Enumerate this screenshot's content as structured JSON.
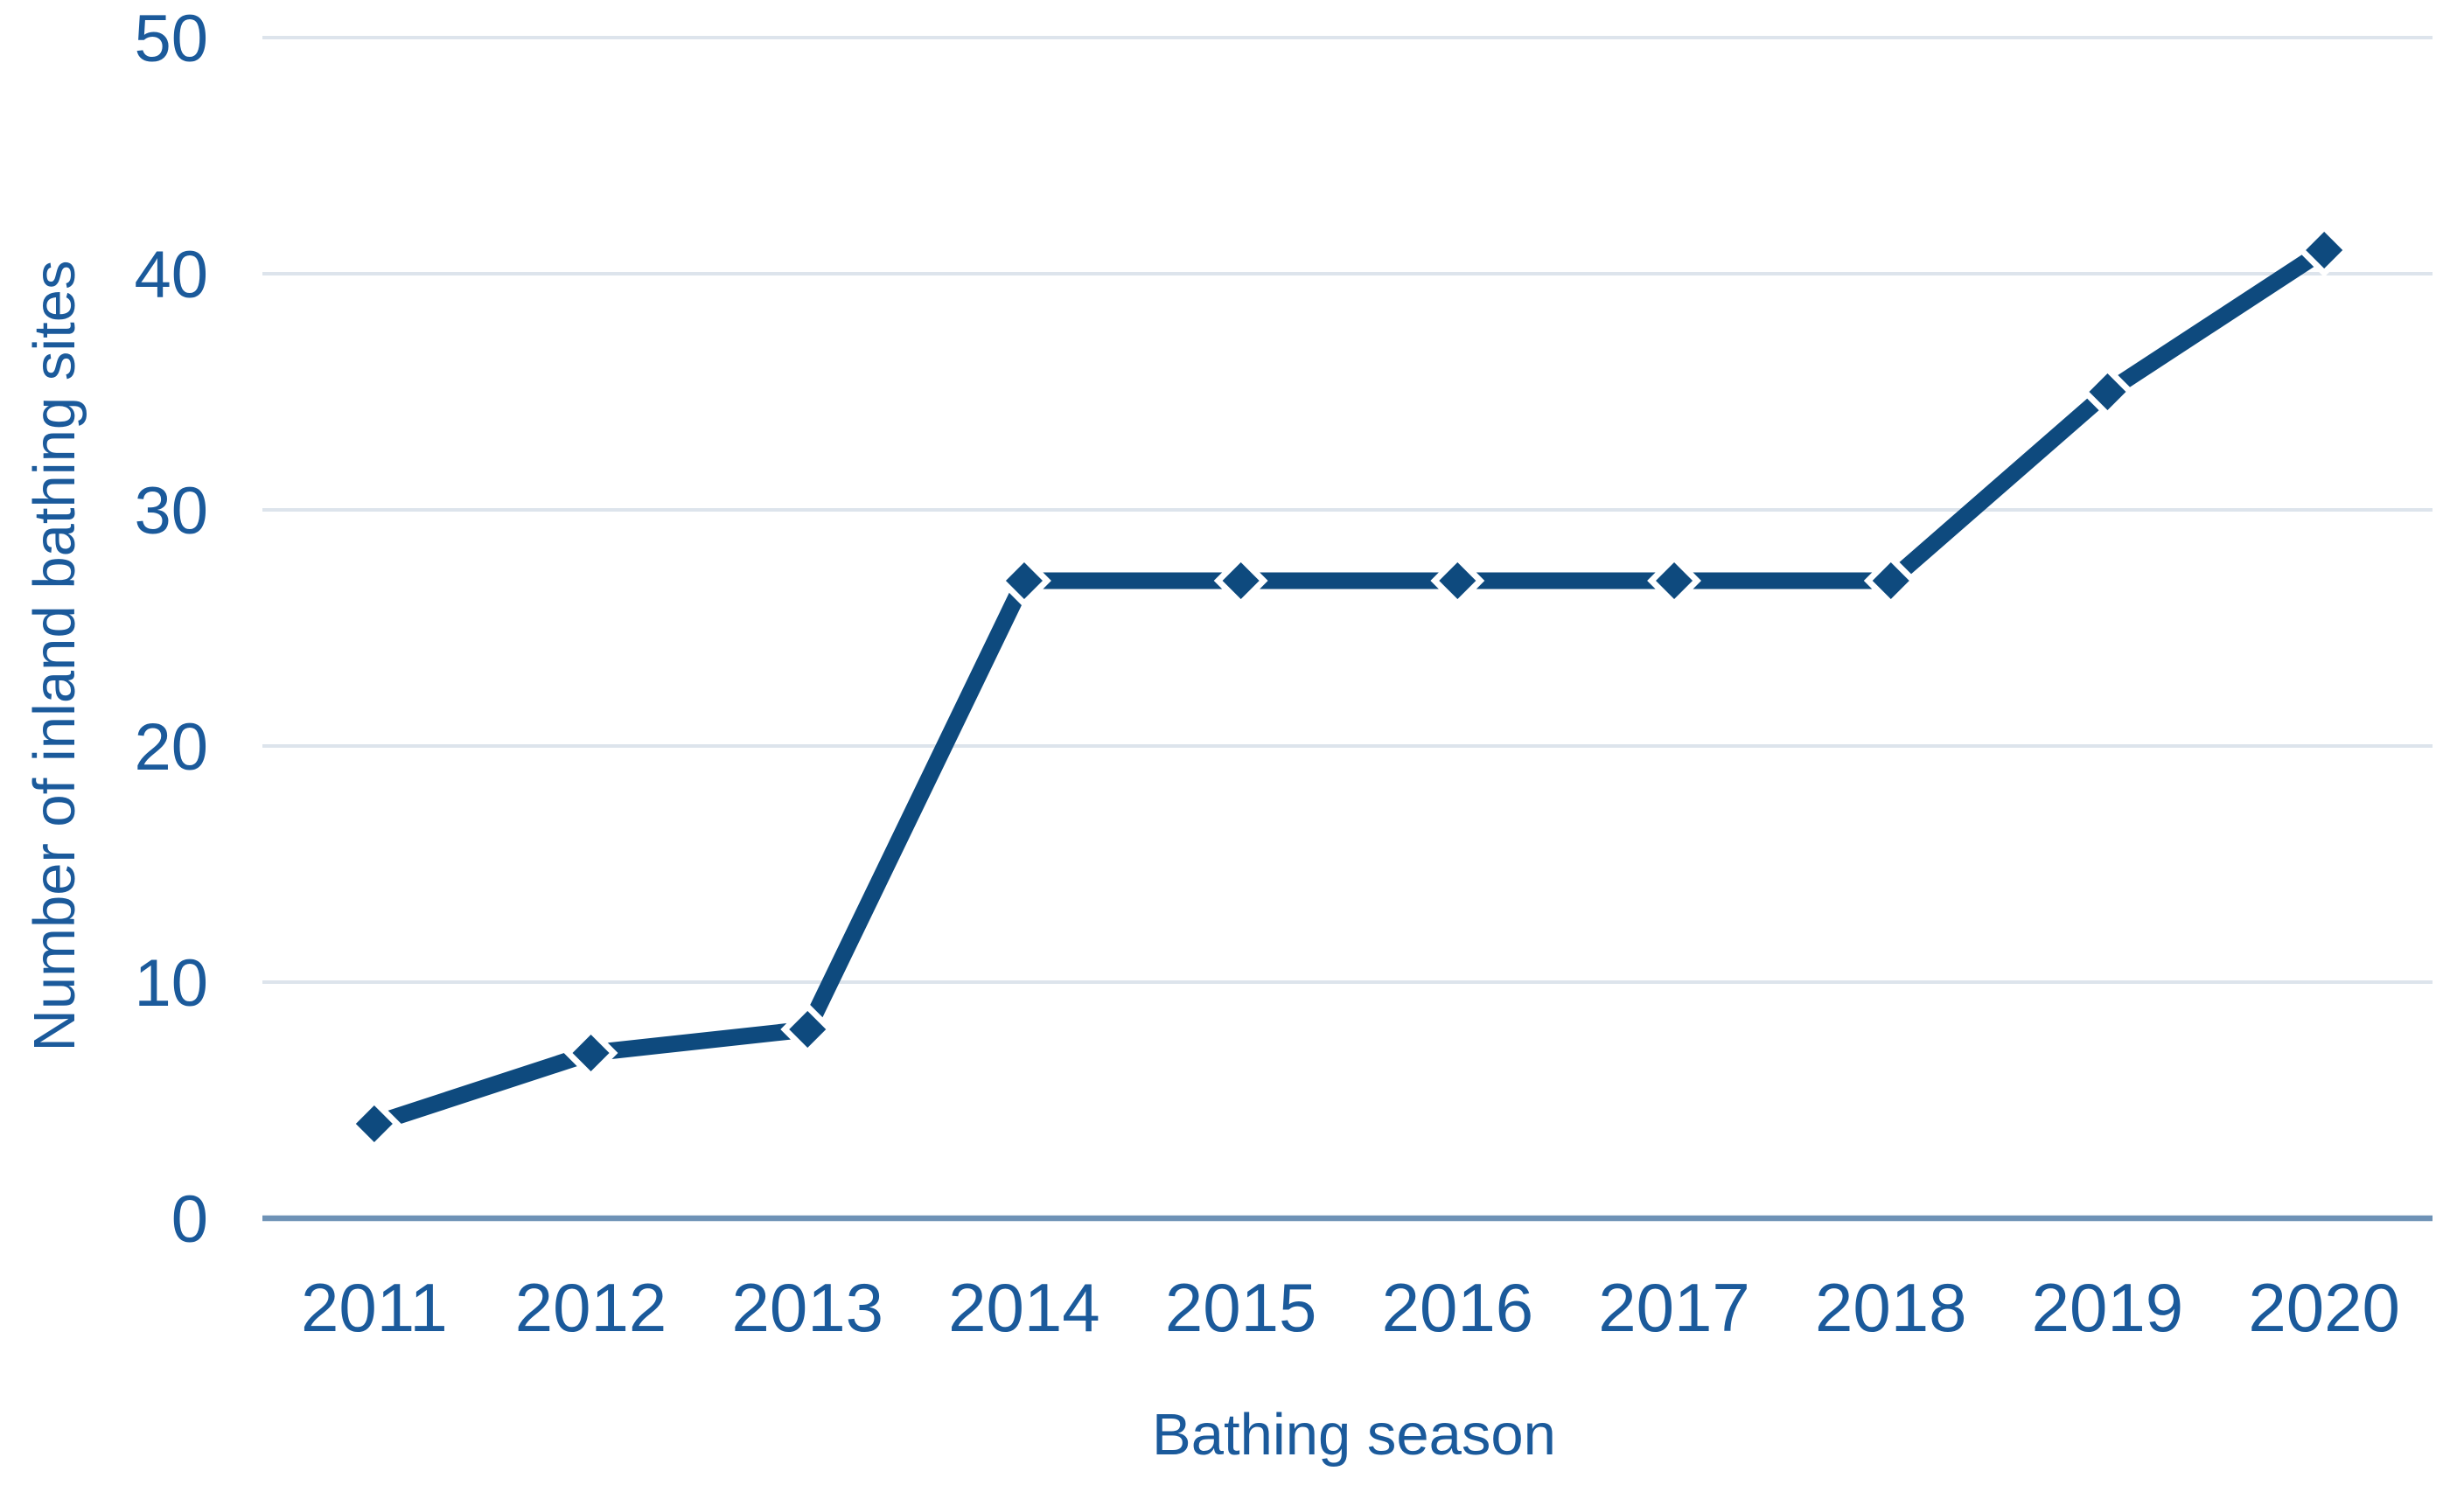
{
  "chart_data": {
    "type": "line",
    "x": [
      "2011",
      "2012",
      "2013",
      "2014",
      "2015",
      "2016",
      "2017",
      "2018",
      "2019",
      "2020"
    ],
    "series": [
      {
        "name": "Number of inland bathing sites",
        "values": [
          4,
          7,
          8,
          27,
          27,
          27,
          27,
          27,
          35,
          41
        ]
      }
    ],
    "xlabel": "Bathing season",
    "ylabel": "Number of inland bathing sites",
    "ylim": [
      0,
      50
    ],
    "yticks": [
      0,
      10,
      20,
      30,
      40,
      50
    ],
    "grid": "horizontal",
    "legend": "none",
    "marker": "diamond",
    "colors": {
      "line": "#0E4A7E",
      "marker_fill": "#0E4A7E",
      "marker_halo": "#FFFFFF",
      "gridline": "#DDE4EC",
      "axis_line": "#6E92B6",
      "label_text": "#1B5A9B",
      "background": "#FFFFFF"
    }
  }
}
